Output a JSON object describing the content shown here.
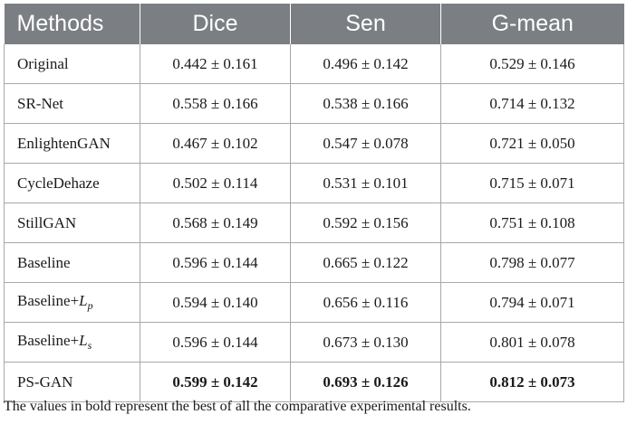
{
  "table": {
    "headers": [
      "Methods",
      "Dice",
      "Sen",
      "G-mean"
    ],
    "rows": [
      {
        "method": "Original",
        "dice": "0.442 ± 0.161",
        "sen": "0.496 ± 0.142",
        "gmean": "0.529 ± 0.146",
        "bold": false
      },
      {
        "method": "SR-Net",
        "dice": "0.558 ± 0.166",
        "sen": "0.538 ± 0.166",
        "gmean": "0.714 ± 0.132",
        "bold": false
      },
      {
        "method": "EnlightenGAN",
        "dice": "0.467 ± 0.102",
        "sen": "0.547 ± 0.078",
        "gmean": "0.721 ± 0.050",
        "bold": false
      },
      {
        "method": "CycleDehaze",
        "dice": "0.502 ± 0.114",
        "sen": "0.531 ± 0.101",
        "gmean": "0.715 ± 0.071",
        "bold": false
      },
      {
        "method": "StillGAN",
        "dice": "0.568 ± 0.149",
        "sen": "0.592 ± 0.156",
        "gmean": "0.751 ± 0.108",
        "bold": false
      },
      {
        "method": "Baseline",
        "dice": "0.596 ± 0.144",
        "sen": "0.665 ± 0.122",
        "gmean": "0.798 ± 0.077",
        "bold": false
      },
      {
        "method_prefix": "Baseline+",
        "method_var": "L",
        "method_sub": "p",
        "dice": "0.594 ± 0.140",
        "sen": "0.656 ± 0.116",
        "gmean": "0.794 ± 0.071",
        "bold": false
      },
      {
        "method_prefix": "Baseline+",
        "method_var": "L",
        "method_sub": "s",
        "dice": "0.596 ± 0.144",
        "sen": "0.673 ± 0.130",
        "gmean": "0.801 ± 0.078",
        "bold": false
      },
      {
        "method": "PS-GAN",
        "dice": "0.599 ± 0.142",
        "sen": "0.693 ± 0.126",
        "gmean": "0.812 ± 0.073",
        "bold": true
      }
    ]
  },
  "footnote": "The values in bold represent the best of all the comparative experimental results."
}
